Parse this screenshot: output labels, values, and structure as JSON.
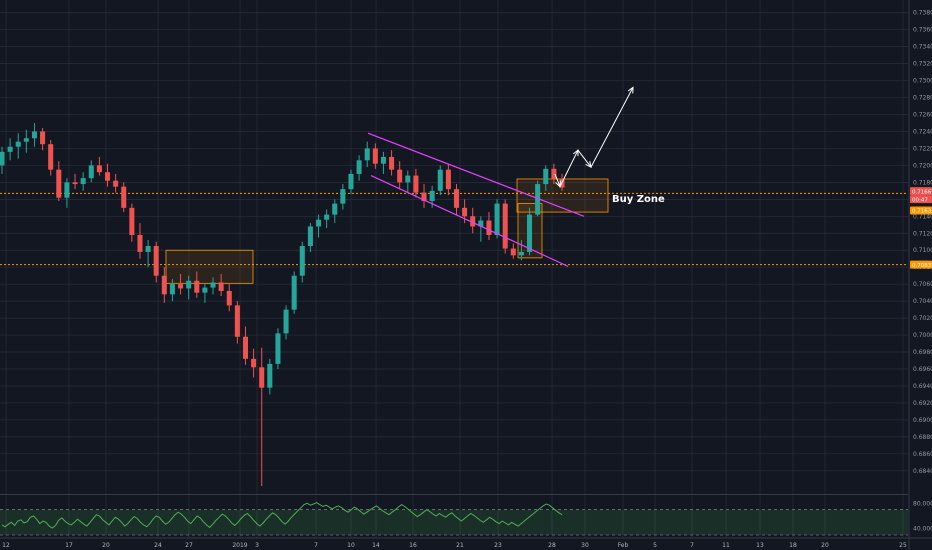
{
  "chart_data": [
    {
      "type": "candlestick",
      "title": "",
      "y_axis": {
        "ylim": [
          0.6815,
          0.7395
        ],
        "ticks": [
          "0.73800",
          "0.73600",
          "0.73400",
          "0.73200",
          "0.73000",
          "0.72800",
          "0.72600",
          "0.72400",
          "0.72200",
          "0.72000",
          "0.71800",
          "0.71600",
          "0.71400",
          "0.71200",
          "0.71000",
          "0.70800",
          "0.70600",
          "0.70400",
          "0.70200",
          "0.70000",
          "0.69800",
          "0.69600",
          "0.69400",
          "0.69200",
          "0.69000",
          "0.68800",
          "0.68600",
          "0.68400"
        ]
      },
      "x_axis": {
        "ticks": [
          "12",
          "17",
          "20",
          "24",
          "27",
          "2019",
          "3",
          "7",
          "10",
          "14",
          "16",
          "21",
          "23",
          "28",
          "30",
          "Feb",
          "5",
          "7",
          "11",
          "13",
          "18",
          "20",
          "25"
        ]
      },
      "price_labels": [
        "0.71661",
        "00:47",
        "0.71634",
        "0.70831"
      ],
      "levels": [
        0.7167,
        0.7083
      ],
      "annotations": [
        {
          "text": "Buy Zone",
          "kind": "label"
        },
        {
          "kind": "zone",
          "price_range": [
            0.7145,
            0.7184
          ],
          "note": "buy zone box"
        },
        {
          "kind": "zone",
          "price_range": [
            0.7061,
            0.71
          ],
          "note": "earlier box"
        },
        {
          "kind": "zone",
          "price_range": [
            0.7091,
            0.7155
          ],
          "note": "breakout box"
        },
        {
          "kind": "channel",
          "note": "descending parallel channel"
        },
        {
          "kind": "projection",
          "note": "white zig-zag arrows pointing up"
        }
      ],
      "series": [
        {
          "type": "ohlc",
          "ohlc": [
            [
              0.72,
              0.7222,
              0.719,
              0.7216
            ],
            [
              0.7216,
              0.7232,
              0.7206,
              0.7222
            ],
            [
              0.7222,
              0.7238,
              0.7208,
              0.7228
            ],
            [
              0.7228,
              0.7242,
              0.7215,
              0.7232
            ],
            [
              0.7232,
              0.725,
              0.7222,
              0.724
            ],
            [
              0.724,
              0.7244,
              0.7218,
              0.7225
            ],
            [
              0.7225,
              0.723,
              0.7188,
              0.7195
            ],
            [
              0.7195,
              0.7205,
              0.7158,
              0.7162
            ],
            [
              0.7162,
              0.7185,
              0.715,
              0.718
            ],
            [
              0.718,
              0.719,
              0.7172,
              0.7178
            ],
            [
              0.7178,
              0.7192,
              0.717,
              0.7185
            ],
            [
              0.7185,
              0.7206,
              0.718,
              0.72
            ],
            [
              0.72,
              0.721,
              0.7188,
              0.7192
            ],
            [
              0.7192,
              0.7202,
              0.7175,
              0.7182
            ],
            [
              0.7182,
              0.719,
              0.7168,
              0.7175
            ],
            [
              0.7175,
              0.718,
              0.7145,
              0.715
            ],
            [
              0.715,
              0.7155,
              0.711,
              0.7118
            ],
            [
              0.7118,
              0.7132,
              0.709,
              0.7098
            ],
            [
              0.7098,
              0.7112,
              0.708,
              0.7105
            ],
            [
              0.7105,
              0.711,
              0.7062,
              0.707
            ],
            [
              0.707,
              0.708,
              0.7038,
              0.7048
            ],
            [
              0.7048,
              0.7066,
              0.704,
              0.706
            ],
            [
              0.706,
              0.7072,
              0.7048,
              0.7055
            ],
            [
              0.7055,
              0.707,
              0.7042,
              0.7064
            ],
            [
              0.7064,
              0.7075,
              0.7044,
              0.705
            ],
            [
              0.705,
              0.706,
              0.7038,
              0.7056
            ],
            [
              0.7056,
              0.7068,
              0.7048,
              0.7062
            ],
            [
              0.7062,
              0.7072,
              0.7046,
              0.7052
            ],
            [
              0.7052,
              0.706,
              0.7028,
              0.7035
            ],
            [
              0.7035,
              0.704,
              0.699,
              0.6998
            ],
            [
              0.6998,
              0.701,
              0.6965,
              0.6972
            ],
            [
              0.6972,
              0.6984,
              0.695,
              0.6962
            ],
            [
              0.6962,
              0.6985,
              0.6822,
              0.6938
            ],
            [
              0.6938,
              0.6972,
              0.693,
              0.6966
            ],
            [
              0.6966,
              0.7008,
              0.696,
              0.7002
            ],
            [
              0.7002,
              0.7035,
              0.6995,
              0.703
            ],
            [
              0.703,
              0.7075,
              0.7025,
              0.707
            ],
            [
              0.707,
              0.711,
              0.7062,
              0.7105
            ],
            [
              0.7105,
              0.7132,
              0.7098,
              0.7128
            ],
            [
              0.7128,
              0.7142,
              0.7115,
              0.7136
            ],
            [
              0.7136,
              0.7148,
              0.7126,
              0.7142
            ],
            [
              0.7142,
              0.716,
              0.7132,
              0.7155
            ],
            [
              0.7155,
              0.7178,
              0.7148,
              0.7172
            ],
            [
              0.7172,
              0.7195,
              0.7166,
              0.719
            ],
            [
              0.719,
              0.7212,
              0.7182,
              0.7206
            ],
            [
              0.7206,
              0.7228,
              0.7198,
              0.722
            ],
            [
              0.722,
              0.7226,
              0.7196,
              0.7202
            ],
            [
              0.7202,
              0.7216,
              0.719,
              0.721
            ],
            [
              0.721,
              0.7218,
              0.7188,
              0.7195
            ],
            [
              0.7195,
              0.7205,
              0.7172,
              0.718
            ],
            [
              0.718,
              0.7194,
              0.7168,
              0.7188
            ],
            [
              0.7188,
              0.7196,
              0.7162,
              0.7168
            ],
            [
              0.7168,
              0.7178,
              0.715,
              0.7158
            ],
            [
              0.7158,
              0.7176,
              0.715,
              0.717
            ],
            [
              0.717,
              0.72,
              0.7165,
              0.7195
            ],
            [
              0.7195,
              0.7202,
              0.7165,
              0.7172
            ],
            [
              0.7172,
              0.7178,
              0.7142,
              0.715
            ],
            [
              0.715,
              0.716,
              0.7132,
              0.714
            ],
            [
              0.714,
              0.715,
              0.712,
              0.7128
            ],
            [
              0.7128,
              0.714,
              0.711,
              0.7135
            ],
            [
              0.7135,
              0.7145,
              0.7112,
              0.7118
            ],
            [
              0.7118,
              0.716,
              0.7114,
              0.7155
            ],
            [
              0.7155,
              0.716,
              0.7096,
              0.7102
            ],
            [
              0.7102,
              0.7108,
              0.709,
              0.7094
            ],
            [
              0.7094,
              0.7112,
              0.7088,
              0.7098
            ],
            [
              0.7098,
              0.715,
              0.7094,
              0.7142
            ],
            [
              0.7142,
              0.7182,
              0.714,
              0.7178
            ],
            [
              0.7178,
              0.72,
              0.717,
              0.7196
            ],
            [
              0.7196,
              0.7202,
              0.7178,
              0.7184
            ],
            [
              0.7184,
              0.719,
              0.717,
              0.7174
            ]
          ]
        },
        {
          "type": "oscillator",
          "ylim": [
            30,
            90
          ],
          "ticks": [
            "80.0000",
            "40.0000"
          ],
          "levels": [
            70,
            30
          ],
          "values": [
            46,
            43,
            47,
            50,
            45,
            52,
            54,
            49,
            51,
            58,
            60,
            55,
            48,
            52,
            50,
            44,
            41,
            45,
            53,
            57,
            52,
            48,
            46,
            50,
            55,
            51,
            47,
            44,
            50,
            56,
            62,
            60,
            54,
            50,
            46,
            52,
            58,
            55,
            50,
            44,
            48,
            54,
            59,
            56,
            50,
            46,
            43,
            48,
            55,
            60,
            58,
            52,
            47,
            50,
            56,
            62,
            66,
            63,
            58,
            52,
            48,
            54,
            60,
            57,
            51,
            46,
            42,
            47,
            53,
            58,
            63,
            60,
            55,
            49,
            45,
            50,
            56,
            61,
            64,
            59,
            53,
            48,
            44,
            49,
            55,
            60,
            65,
            62,
            57,
            51,
            47,
            52,
            58,
            63,
            68,
            73,
            78,
            80,
            77,
            79,
            81,
            78,
            75,
            77,
            74,
            71,
            74,
            76,
            73,
            69,
            66,
            70,
            74,
            71,
            67,
            63,
            66,
            70,
            73,
            76,
            72,
            68,
            65,
            62,
            66,
            70,
            74,
            78,
            75,
            71,
            67,
            63,
            59,
            62,
            66,
            70,
            67,
            63,
            60,
            64,
            61,
            58,
            62,
            65,
            60,
            56,
            52,
            56,
            60,
            64,
            61,
            57,
            53,
            50,
            54,
            58,
            55,
            51,
            48,
            52,
            49,
            46,
            50,
            47,
            44,
            48,
            52,
            56,
            60,
            64,
            68,
            72,
            76,
            79,
            77,
            73,
            69,
            65,
            62
          ]
        }
      ]
    }
  ],
  "colors": {
    "background": "#131722",
    "grid": "#2a2e39",
    "up": "#26a69a",
    "down": "#ef5350",
    "level": "#ff9800",
    "channel": "#e040fb",
    "zone_border": "#ff9800",
    "rsi": "#4caf50",
    "text": "#b2b5be",
    "white": "#ffffff"
  }
}
